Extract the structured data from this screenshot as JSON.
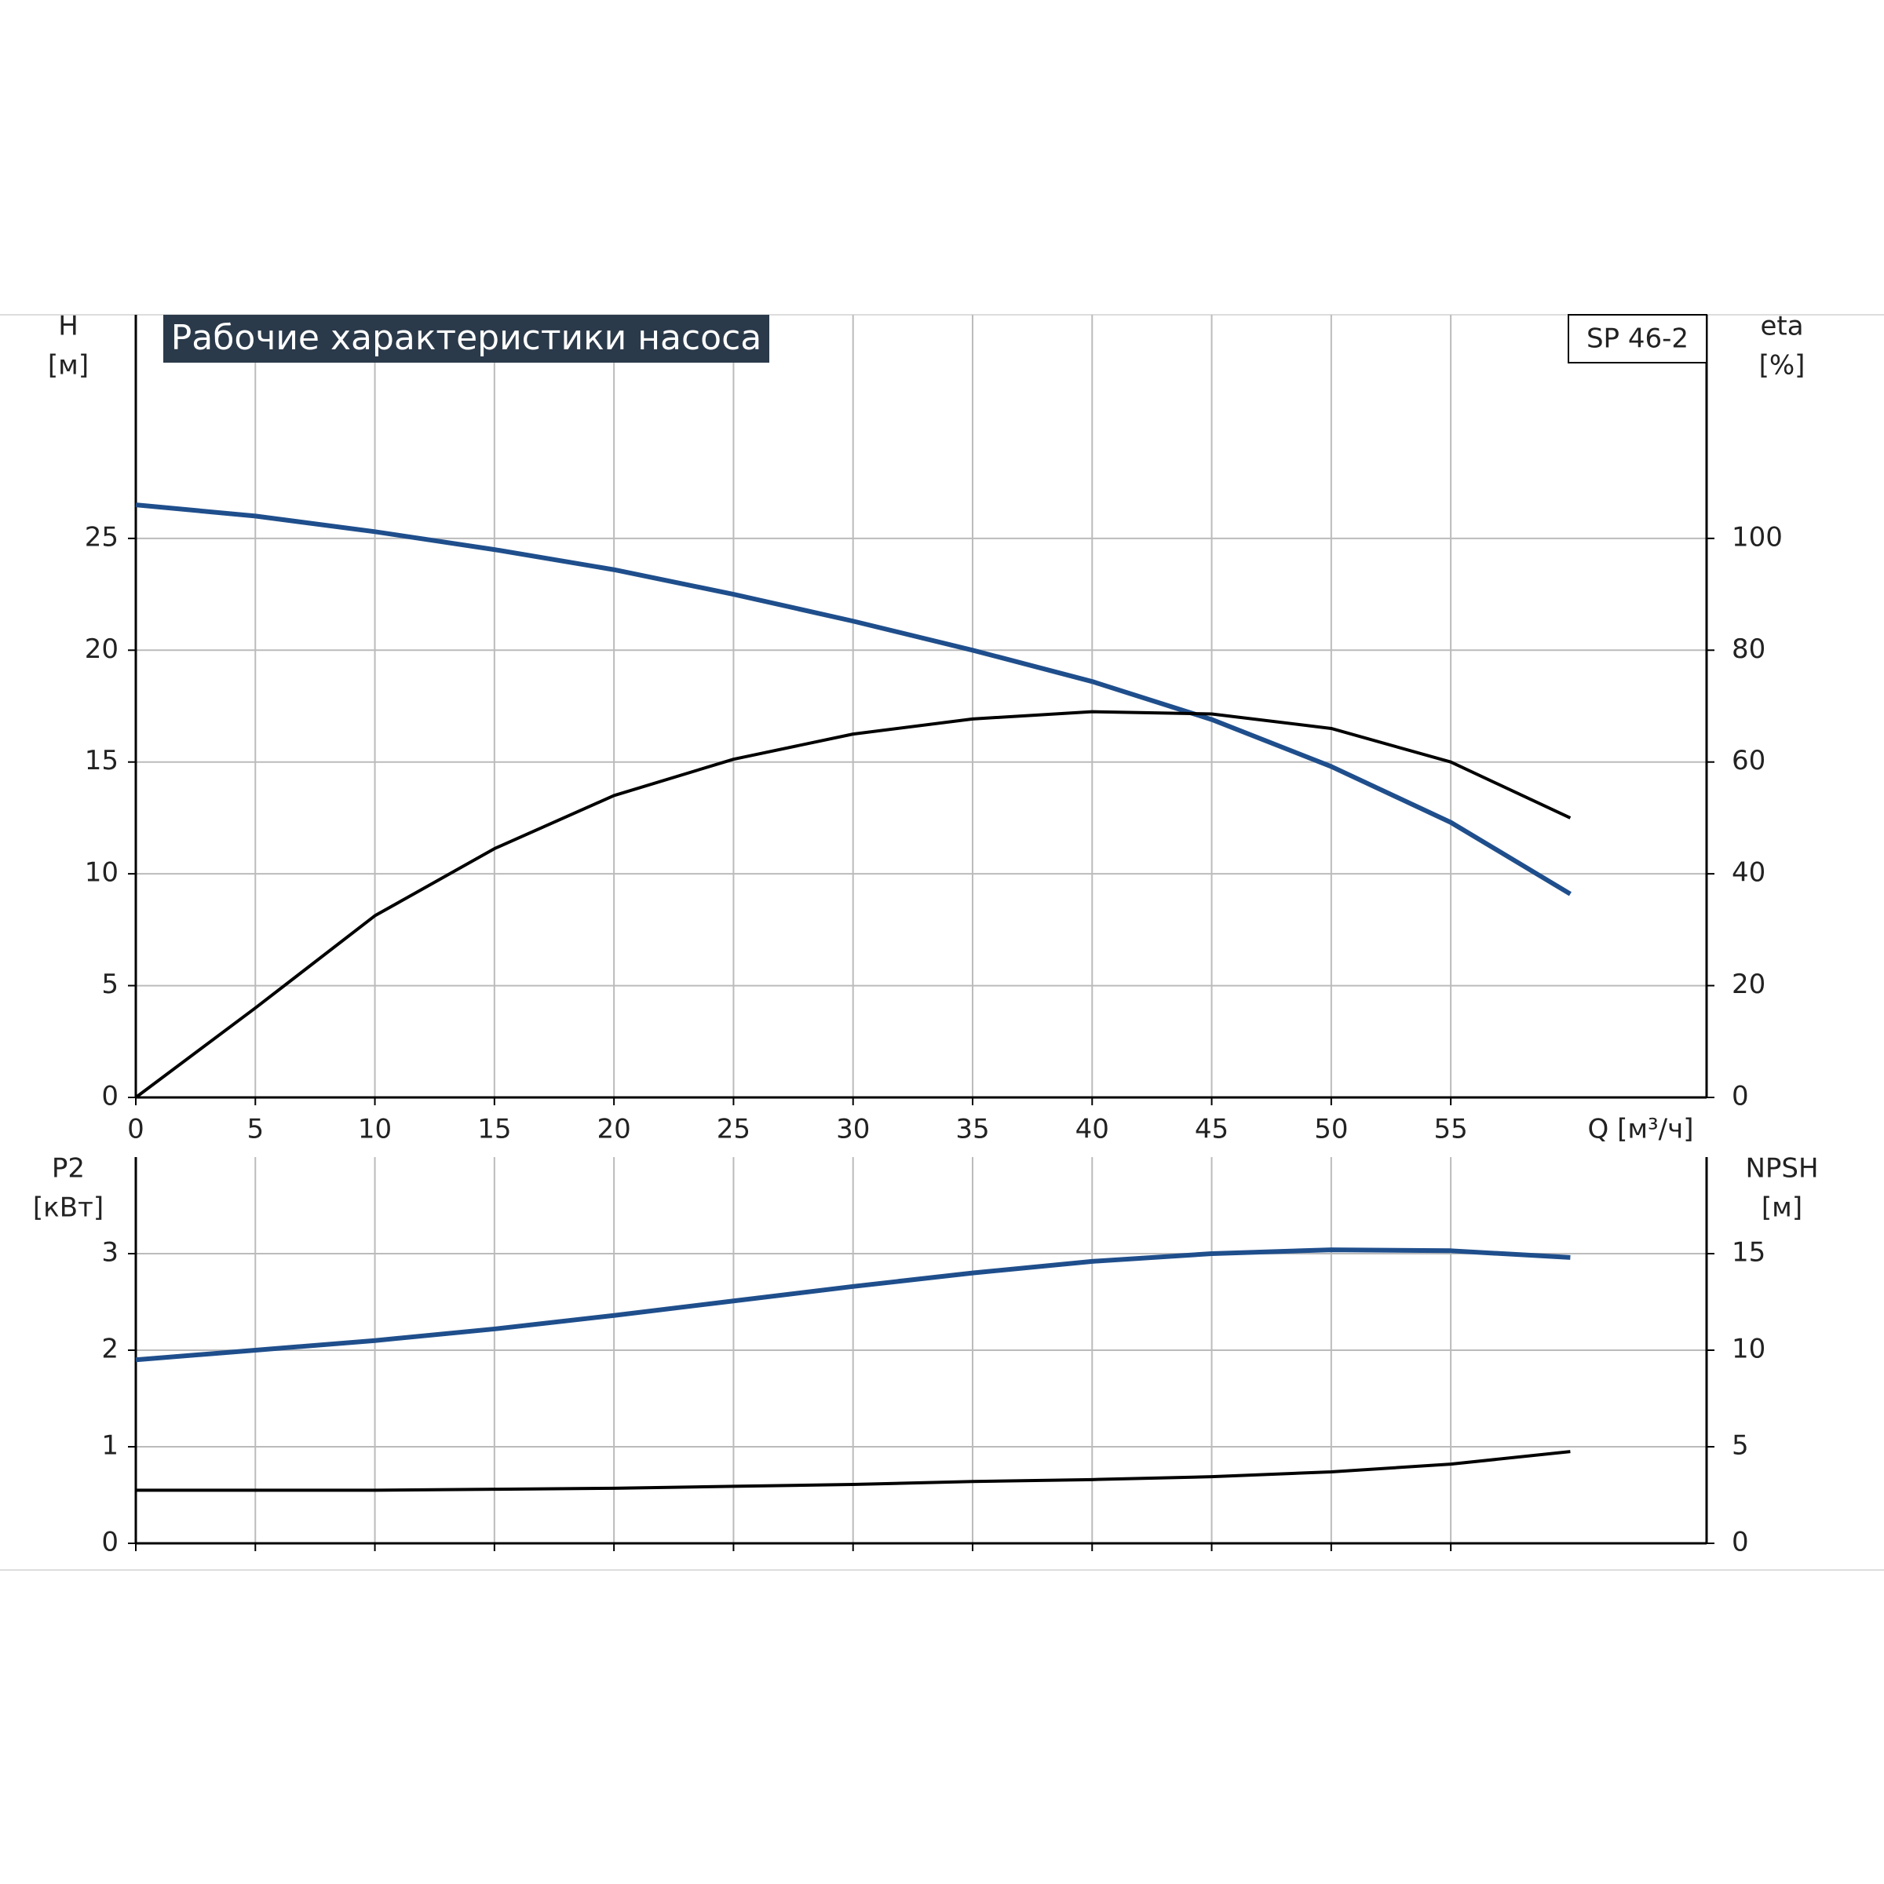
{
  "chart_data": [
    {
      "type": "line",
      "title": "Рабочие характеристики насоса",
      "model": "SP 46-2",
      "ylabel": "H",
      "ylabel_unit": "[м]",
      "y2label": "eta",
      "y2label_unit": "[%]",
      "xlabel": "Q [м³/ч]",
      "x": [
        0,
        5,
        10,
        15,
        20,
        25,
        30,
        35,
        40,
        45,
        50,
        55,
        60
      ],
      "xlim": [
        0,
        65.7
      ],
      "xticks": [
        0,
        5,
        10,
        15,
        20,
        25,
        30,
        35,
        40,
        45,
        50,
        55
      ],
      "xtick_labels": true,
      "ylim": [
        0,
        35
      ],
      "yticks": [
        0,
        5,
        10,
        15,
        20,
        25
      ],
      "y2lim": [
        0,
        140
      ],
      "y2ticks": [
        0,
        20,
        40,
        60,
        80,
        100
      ],
      "grid": true,
      "series": [
        {
          "name": "H",
          "color": "#1f4e8c",
          "values": [
            26.5,
            26.0,
            25.3,
            24.5,
            23.6,
            22.5,
            21.3,
            20.0,
            18.6,
            16.9,
            14.8,
            12.3,
            9.1
          ]
        },
        {
          "name": "eta",
          "color": "#000000",
          "axis": "y2",
          "values": [
            0,
            16,
            32.5,
            44.5,
            54,
            60.5,
            65,
            67.7,
            69,
            68.6,
            66,
            60,
            50
          ]
        }
      ]
    },
    {
      "type": "line",
      "ylabel": "P2",
      "ylabel_unit": "[кВт]",
      "y2label": "NPSH",
      "y2label_unit": "[м]",
      "x": [
        0,
        5,
        10,
        15,
        20,
        25,
        30,
        35,
        40,
        45,
        50,
        55,
        60
      ],
      "xlim": [
        0,
        65.7
      ],
      "xticks": [
        0,
        5,
        10,
        15,
        20,
        25,
        30,
        35,
        40,
        45,
        50,
        55
      ],
      "xtick_labels": false,
      "ylim": [
        0,
        4
      ],
      "yticks": [
        0,
        1,
        2,
        3
      ],
      "y2lim": [
        0,
        20
      ],
      "y2ticks": [
        0,
        5,
        10,
        15
      ],
      "grid": true,
      "series": [
        {
          "name": "P2",
          "color": "#1f4e8c",
          "values": [
            1.9,
            2.0,
            2.1,
            2.22,
            2.36,
            2.51,
            2.66,
            2.8,
            2.92,
            3.0,
            3.04,
            3.03,
            2.96
          ]
        },
        {
          "name": "NPSH",
          "color": "#000000",
          "axis": "y2",
          "values": [
            2.75,
            2.75,
            2.75,
            2.8,
            2.85,
            2.95,
            3.05,
            3.2,
            3.3,
            3.45,
            3.7,
            4.1,
            4.75
          ]
        }
      ]
    }
  ]
}
